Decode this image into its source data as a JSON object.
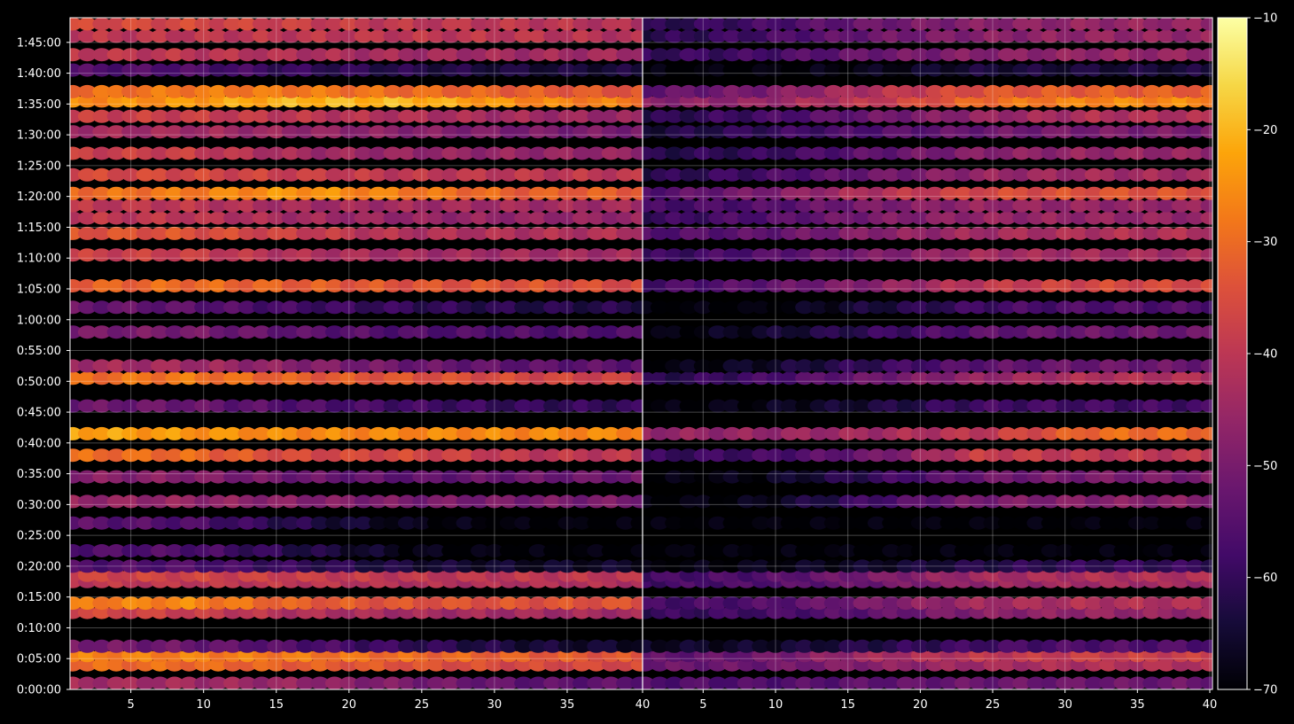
{
  "chart_data": {
    "type": "heatmap",
    "colormap": "inferno",
    "grid": true,
    "y": {
      "min_seconds": 0,
      "max_seconds": 6540,
      "tick_labels": [
        "0:00:00",
        "0:05:00",
        "0:10:00",
        "0:15:00",
        "0:20:00",
        "0:25:00",
        "0:30:00",
        "0:35:00",
        "0:40:00",
        "0:45:00",
        "0:50:00",
        "0:55:00",
        "1:00:00",
        "1:05:00",
        "1:10:00",
        "1:15:00",
        "1:20:00",
        "1:25:00",
        "1:30:00",
        "1:35:00",
        "1:40:00",
        "1:45:00"
      ]
    },
    "x": {
      "min": 1,
      "max": 40,
      "tick_labels_left": [
        "5",
        "10",
        "15",
        "20",
        "25",
        "30",
        "35"
      ],
      "tick_labels_right": [
        "5",
        "10",
        "15",
        "20",
        "25",
        "30",
        "35",
        "40"
      ],
      "panel_boundary_label": "40"
    },
    "colorbar": {
      "min": -70,
      "max": -10,
      "tick_labels": [
        "-10",
        "-20",
        "-30",
        "-40",
        "-50",
        "-60",
        "-70"
      ]
    },
    "panels": [
      {
        "name": "left",
        "rows": [
          {
            "t": "0:01:00",
            "level": [
              -44,
              -44,
              -46,
              -50,
              -54,
              -54
            ]
          },
          {
            "t": "0:04:00",
            "level": [
              -30,
              -30,
              -32,
              -34,
              -36,
              -36
            ]
          },
          {
            "t": "0:05:30",
            "level": [
              -27,
              -27,
              -28,
              -30,
              -32,
              -34
            ]
          },
          {
            "t": "0:07:00",
            "level": [
              -50,
              -52,
              -56,
              -60,
              -64,
              -66
            ]
          },
          {
            "t": "0:12:30",
            "level": [
              -36,
              -38,
              -42,
              -44,
              -44,
              -44
            ]
          },
          {
            "t": "0:14:00",
            "level": [
              -28,
              -26,
              -32,
              -34,
              -34,
              -34
            ]
          },
          {
            "t": "0:17:30",
            "level": [
              -40,
              -40,
              -40,
              -42,
              -42,
              -42
            ]
          },
          {
            "t": "0:18:30",
            "level": [
              -37,
              -37,
              -38,
              -40,
              -40,
              -40
            ]
          },
          {
            "t": "0:20:00",
            "level": [
              -56,
              -56,
              -60,
              -64,
              -66,
              -66
            ]
          },
          {
            "t": "0:22:30",
            "level": [
              -56,
              -56,
              -62,
              -68,
              -70,
              -70
            ]
          },
          {
            "t": "0:27:00",
            "level": [
              -54,
              -56,
              -62,
              -68,
              -70,
              -70
            ]
          },
          {
            "t": "0:30:30",
            "level": [
              -46,
              -46,
              -48,
              -50,
              -50,
              -50
            ]
          },
          {
            "t": "0:34:30",
            "level": [
              -48,
              -48,
              -52,
              -54,
              -52,
              -52
            ]
          },
          {
            "t": "0:38:00",
            "level": [
              -30,
              -30,
              -36,
              -36,
              -40,
              -40
            ]
          },
          {
            "t": "0:41:30",
            "level": [
              -22,
              -24,
              -26,
              -26,
              -26,
              -26
            ]
          },
          {
            "t": "0:46:00",
            "level": [
              -52,
              -52,
              -56,
              -58,
              -60,
              -60
            ]
          },
          {
            "t": "0:50:30",
            "level": [
              -30,
              -28,
              -32,
              -34,
              -36,
              -38
            ]
          },
          {
            "t": "0:52:30",
            "level": [
              -44,
              -44,
              -48,
              -52,
              -54,
              -54
            ]
          },
          {
            "t": "0:58:00",
            "level": [
              -50,
              -50,
              -54,
              -56,
              -56,
              -56
            ]
          },
          {
            "t": "1:02:00",
            "level": [
              -52,
              -54,
              -58,
              -60,
              -62,
              -62
            ]
          },
          {
            "t": "1:05:30",
            "level": [
              -32,
              -30,
              -32,
              -34,
              -34,
              -36
            ]
          },
          {
            "t": "1:10:30",
            "level": [
              -38,
              -38,
              -42,
              -44,
              -44,
              -44
            ]
          },
          {
            "t": "1:14:00",
            "level": [
              -34,
              -34,
              -38,
              -42,
              -42,
              -42
            ]
          },
          {
            "t": "1:16:30",
            "level": [
              -40,
              -40,
              -44,
              -46,
              -46,
              -46
            ]
          },
          {
            "t": "1:18:30",
            "level": [
              -40,
              -40,
              -44,
              -44,
              -44,
              -44
            ]
          },
          {
            "t": "1:20:30",
            "level": [
              -30,
              -28,
              -24,
              -28,
              -32,
              -32
            ]
          },
          {
            "t": "1:23:30",
            "level": [
              -36,
              -36,
              -38,
              -40,
              -40,
              -40
            ]
          },
          {
            "t": "1:27:00",
            "level": [
              -38,
              -38,
              -44,
              -46,
              -46,
              -46
            ]
          },
          {
            "t": "1:30:30",
            "level": [
              -44,
              -44,
              -46,
              -48,
              -50,
              -50
            ]
          },
          {
            "t": "1:33:00",
            "level": [
              -38,
              -38,
              -40,
              -42,
              -44,
              -46
            ]
          },
          {
            "t": "1:35:30",
            "level": [
              -26,
              -24,
              -20,
              -20,
              -26,
              -28
            ]
          },
          {
            "t": "1:37:00",
            "level": [
              -30,
              -28,
              -28,
              -30,
              -32,
              -34
            ]
          },
          {
            "t": "1:40:30",
            "level": [
              -56,
              -56,
              -60,
              -62,
              -64,
              -64
            ]
          },
          {
            "t": "1:43:00",
            "level": [
              -40,
              -40,
              -42,
              -44,
              -44,
              -44
            ]
          },
          {
            "t": "1:46:00",
            "level": [
              -40,
              -40,
              -40,
              -40,
              -40,
              -42
            ]
          },
          {
            "t": "1:48:00",
            "level": [
              -36,
              -36,
              -38,
              -40,
              -40,
              -42
            ]
          }
        ]
      },
      {
        "name": "right",
        "rows": [
          {
            "t": "0:01:00",
            "level": [
              -56,
              -56,
              -54,
              -52,
              -52,
              -52
            ]
          },
          {
            "t": "0:04:00",
            "level": [
              -52,
              -52,
              -48,
              -44,
              -42,
              -42
            ]
          },
          {
            "t": "0:05:30",
            "level": [
              -54,
              -52,
              -44,
              -40,
              -38,
              -38
            ]
          },
          {
            "t": "0:07:00",
            "level": [
              -66,
              -66,
              -62,
              -58,
              -56,
              -56
            ]
          },
          {
            "t": "0:12:30",
            "level": [
              -60,
              -58,
              -54,
              -48,
              -46,
              -46
            ]
          },
          {
            "t": "0:14:00",
            "level": [
              -58,
              -56,
              -50,
              -44,
              -42,
              -42
            ]
          },
          {
            "t": "0:17:30",
            "level": [
              -58,
              -56,
              -52,
              -46,
              -44,
              -44
            ]
          },
          {
            "t": "0:18:30",
            "level": [
              -58,
              -56,
              -50,
              -44,
              -42,
              -42
            ]
          },
          {
            "t": "0:20:00",
            "level": [
              -70,
              -68,
              -66,
              -62,
              -60,
              -60
            ]
          },
          {
            "t": "0:22:30",
            "level": [
              -70,
              -70,
              -70,
              -70,
              -70,
              -70
            ]
          },
          {
            "t": "0:27:00",
            "level": [
              -70,
              -70,
              -70,
              -70,
              -70,
              -70
            ]
          },
          {
            "t": "0:30:30",
            "level": [
              -70,
              -68,
              -58,
              -50,
              -48,
              -48
            ]
          },
          {
            "t": "0:34:30",
            "level": [
              -70,
              -68,
              -60,
              -52,
              -50,
              -50
            ]
          },
          {
            "t": "0:38:00",
            "level": [
              -60,
              -58,
              -52,
              -38,
              -40,
              -40
            ]
          },
          {
            "t": "0:41:30",
            "level": [
              -46,
              -46,
              -44,
              -40,
              -30,
              -30
            ]
          },
          {
            "t": "0:46:00",
            "level": [
              -70,
              -68,
              -64,
              -58,
              -58,
              -58
            ]
          },
          {
            "t": "0:50:30",
            "level": [
              -62,
              -58,
              -52,
              -46,
              -42,
              -42
            ]
          },
          {
            "t": "0:52:30",
            "level": [
              -70,
              -66,
              -60,
              -54,
              -52,
              -52
            ]
          },
          {
            "t": "0:58:00",
            "level": [
              -70,
              -66,
              -60,
              -54,
              -52,
              -52
            ]
          },
          {
            "t": "1:02:00",
            "level": [
              -70,
              -70,
              -64,
              -58,
              -56,
              -56
            ]
          },
          {
            "t": "1:05:30",
            "level": [
              -58,
              -54,
              -48,
              -40,
              -36,
              -36
            ]
          },
          {
            "t": "1:10:30",
            "level": [
              -60,
              -56,
              -50,
              -44,
              -44,
              -44
            ]
          },
          {
            "t": "1:14:00",
            "level": [
              -56,
              -54,
              -48,
              -44,
              -42,
              -42
            ]
          },
          {
            "t": "1:16:30",
            "level": [
              -60,
              -56,
              -50,
              -46,
              -46,
              -46
            ]
          },
          {
            "t": "1:18:30",
            "level": [
              -58,
              -56,
              -50,
              -46,
              -46,
              -46
            ]
          },
          {
            "t": "1:20:30",
            "level": [
              -56,
              -50,
              -42,
              -36,
              -34,
              -34
            ]
          },
          {
            "t": "1:23:30",
            "level": [
              -62,
              -58,
              -52,
              -46,
              -44,
              -44
            ]
          },
          {
            "t": "1:27:00",
            "level": [
              -62,
              -60,
              -54,
              -48,
              -46,
              -46
            ]
          },
          {
            "t": "1:30:30",
            "level": [
              -64,
              -60,
              -56,
              -52,
              -50,
              -50
            ]
          },
          {
            "t": "1:33:00",
            "level": [
              -62,
              -58,
              -52,
              -46,
              -42,
              -42
            ]
          },
          {
            "t": "1:35:30",
            "level": [
              -48,
              -46,
              -40,
              -30,
              -26,
              -26
            ]
          },
          {
            "t": "1:37:00",
            "level": [
              -54,
              -50,
              -42,
              -34,
              -32,
              -32
            ]
          },
          {
            "t": "1:40:30",
            "level": [
              -70,
              -70,
              -68,
              -64,
              -64,
              -64
            ]
          },
          {
            "t": "1:43:00",
            "level": [
              -60,
              -58,
              -52,
              -48,
              -46,
              -46
            ]
          },
          {
            "t": "1:46:00",
            "level": [
              -62,
              -58,
              -52,
              -48,
              -46,
              -46
            ]
          },
          {
            "t": "1:48:00",
            "level": [
              -62,
              -58,
              -52,
              -48,
              -46,
              -46
            ]
          }
        ]
      }
    ]
  }
}
